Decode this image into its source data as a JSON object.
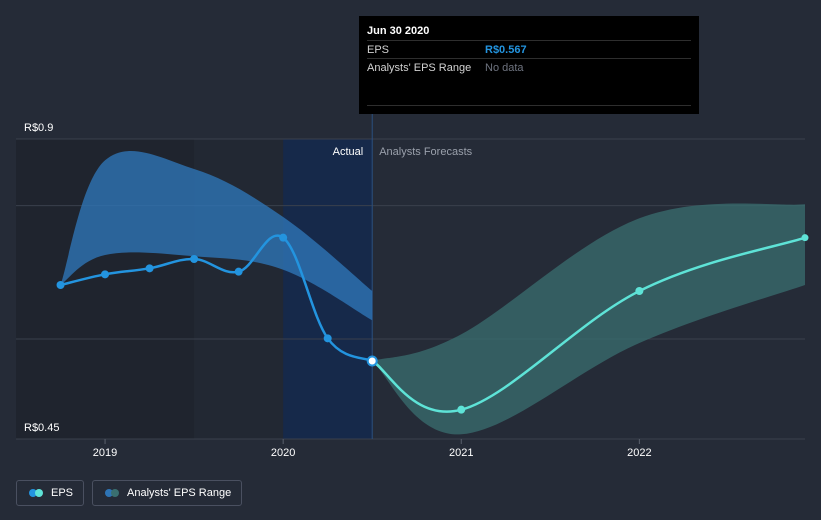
{
  "chart_data": {
    "type": "line",
    "y_tick_labels": [
      "R$0.9",
      "R$0.45"
    ],
    "ylim": [
      0.45,
      0.9
    ],
    "x_tick_labels": [
      "2019",
      "2020",
      "2021",
      "2022"
    ],
    "x_ticks": [
      2019.0,
      2020.0,
      2021.0,
      2022.0
    ],
    "xlim": [
      2018.5,
      2022.93
    ],
    "divider_x": 2020.5,
    "region_labels": {
      "actual": "Actual",
      "forecast": "Analysts Forecasts"
    },
    "series": [
      {
        "name": "EPS",
        "color": "#2394df",
        "points": [
          {
            "x": 2018.75,
            "y": 0.681
          },
          {
            "x": 2019.0,
            "y": 0.697
          },
          {
            "x": 2019.25,
            "y": 0.706
          },
          {
            "x": 2019.5,
            "y": 0.72
          },
          {
            "x": 2019.75,
            "y": 0.701
          },
          {
            "x": 2020.0,
            "y": 0.752
          },
          {
            "x": 2020.25,
            "y": 0.601
          },
          {
            "x": 2020.5,
            "y": 0.567
          }
        ]
      },
      {
        "name": "EPS",
        "color": "#5ee3d7",
        "points": [
          {
            "x": 2020.5,
            "y": 0.567
          },
          {
            "x": 2021.0,
            "y": 0.494
          },
          {
            "x": 2022.0,
            "y": 0.672
          },
          {
            "x": 2022.93,
            "y": 0.752
          }
        ]
      }
    ],
    "range_bands": [
      {
        "name": "Analysts' EPS Range",
        "color": "#2e74b5",
        "upper": [
          {
            "x": 2018.75,
            "y": 0.681
          },
          {
            "x": 2019.0,
            "y": 0.868
          },
          {
            "x": 2019.5,
            "y": 0.855
          },
          {
            "x": 2020.0,
            "y": 0.783
          },
          {
            "x": 2020.5,
            "y": 0.672
          }
        ],
        "lower": [
          {
            "x": 2018.75,
            "y": 0.681
          },
          {
            "x": 2019.0,
            "y": 0.726
          },
          {
            "x": 2019.5,
            "y": 0.724
          },
          {
            "x": 2020.0,
            "y": 0.704
          },
          {
            "x": 2020.5,
            "y": 0.628
          }
        ]
      },
      {
        "name": "Analysts' EPS Range",
        "color": "#3a6f70",
        "upper": [
          {
            "x": 2020.5,
            "y": 0.567
          },
          {
            "x": 2021.0,
            "y": 0.607
          },
          {
            "x": 2022.0,
            "y": 0.781
          },
          {
            "x": 2022.93,
            "y": 0.802
          }
        ],
        "lower": [
          {
            "x": 2020.5,
            "y": 0.567
          },
          {
            "x": 2021.0,
            "y": 0.457
          },
          {
            "x": 2022.0,
            "y": 0.594
          },
          {
            "x": 2022.93,
            "y": 0.681
          }
        ]
      }
    ]
  },
  "tooltip": {
    "date": "Jun 30 2020",
    "rows": [
      {
        "label": "EPS",
        "value": "R$0.567",
        "value_color": "#2394df"
      },
      {
        "label": "Analysts' EPS Range",
        "value": "No data",
        "value_color": "#6f7480"
      }
    ]
  },
  "legend": [
    {
      "label": "EPS",
      "colors": [
        "#2394df",
        "#5ee3d7"
      ]
    },
    {
      "label": "Analysts' EPS Range",
      "colors": [
        "#2e74b5",
        "#3a6f70"
      ]
    }
  ]
}
